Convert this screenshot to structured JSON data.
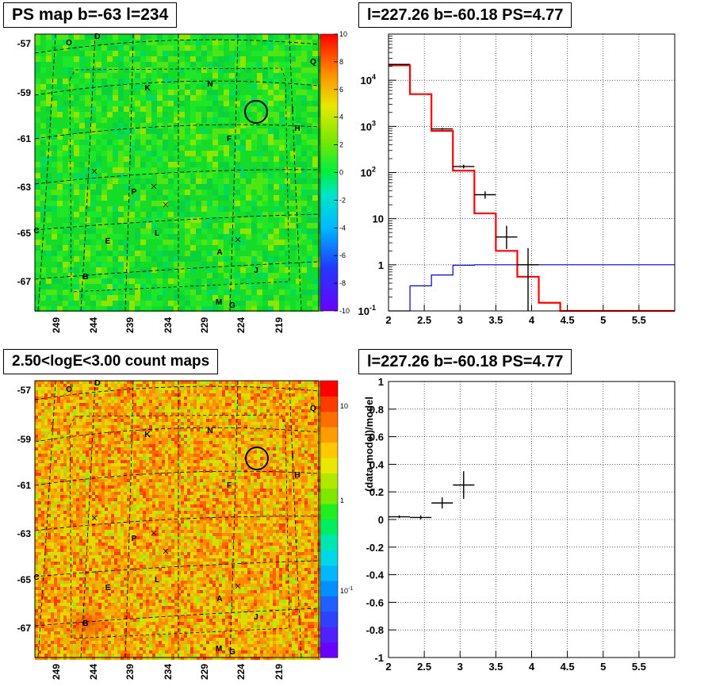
{
  "titles": {
    "map_top": "PS map b=-63 l=234",
    "spectrum_top": "l=227.26 b=-60.18 PS=4.77",
    "map_bottom": "2.50<logE<3.00 count maps",
    "residual_bottom": "l=227.26 b=-60.18 PS=4.77"
  },
  "map_axes": {
    "y_ticks": [
      "-57",
      "-59",
      "-61",
      "-63",
      "-65",
      "-67"
    ],
    "x_ticks": [
      "249",
      "244",
      "239",
      "234",
      "229",
      "224",
      "219"
    ],
    "source_labels": [
      "O",
      "D",
      "Q",
      "K",
      "N",
      "I",
      "H",
      "F",
      "P",
      "C",
      "E",
      "L",
      "A",
      "J",
      "B",
      "M",
      "G"
    ]
  },
  "ps_colorbar": {
    "ticks": [
      "10",
      "8",
      "6",
      "4",
      "2",
      "0",
      "-2",
      "-4",
      "-6",
      "-8",
      "-10"
    ]
  },
  "count_colorbar": {
    "ticks": [
      "10",
      "1",
      "10",
      "-1"
    ]
  },
  "chart_data": [
    {
      "type": "heatmap",
      "title": "PS map b=-63 l=234",
      "xlabel": "",
      "ylabel": "",
      "x_ticks": [
        249,
        244,
        239,
        234,
        229,
        224,
        219
      ],
      "y_ticks": [
        -57,
        -59,
        -61,
        -63,
        -65,
        -67
      ],
      "zlim": [
        -10,
        10
      ],
      "highlight_circle": {
        "l": 225.5,
        "b": -59.8
      },
      "colormap": "rainbow (purple=-10, green=0, red=10)"
    },
    {
      "type": "line",
      "title": "l=227.26 b=-60.18 PS=4.77",
      "x_range": [
        2,
        6
      ],
      "y_scale": "log",
      "y_range": [
        0.1,
        100000
      ],
      "x_ticks": [
        "2",
        "2.5",
        "3",
        "3.5",
        "4",
        "4.5",
        "5",
        "5.5"
      ],
      "y_ticks": [
        "10^{-1}",
        "1",
        "10",
        "10^{2}",
        "10^{3}",
        "10^{4}"
      ],
      "grid": true,
      "series": [
        {
          "color": "#ff0000",
          "style": "step",
          "bins": [
            [
              2.0,
              2.3,
              21000
            ],
            [
              2.3,
              2.6,
              5000
            ],
            [
              2.6,
              2.9,
              800
            ],
            [
              2.9,
              3.2,
              110
            ],
            [
              3.2,
              3.5,
              13
            ],
            [
              3.5,
              3.8,
              2
            ],
            [
              3.8,
              4.1,
              0.55
            ],
            [
              4.1,
              4.4,
              0.15
            ],
            [
              4.4,
              6.0,
              0.1
            ]
          ]
        },
        {
          "color": "#0000cc",
          "style": "step",
          "bins": [
            [
              2.0,
              2.3,
              0.1
            ],
            [
              2.3,
              2.6,
              0.35
            ],
            [
              2.6,
              2.9,
              0.6
            ],
            [
              2.9,
              3.2,
              0.98
            ],
            [
              3.2,
              6.0,
              1.0
            ]
          ]
        },
        {
          "color": "#000000",
          "style": "errorbars",
          "points": [
            {
              "x": 2.15,
              "xerr": 0.15,
              "y": 22000,
              "ylo": 21500,
              "yhi": 22500
            },
            {
              "x": 2.75,
              "xerr": 0.15,
              "y": 880,
              "ylo": 840,
              "yhi": 920
            },
            {
              "x": 3.05,
              "xerr": 0.15,
              "y": 135,
              "ylo": 122,
              "yhi": 148
            },
            {
              "x": 3.35,
              "xerr": 0.15,
              "y": 33,
              "ylo": 27,
              "yhi": 39
            },
            {
              "x": 3.65,
              "xerr": 0.15,
              "y": 4,
              "ylo": 2.2,
              "yhi": 7
            },
            {
              "x": 3.95,
              "xerr": 0.15,
              "y": 1,
              "ylo": 0.1,
              "yhi": 2.3
            }
          ]
        }
      ]
    },
    {
      "type": "heatmap",
      "title": "2.50<logE<3.00 count maps",
      "x_ticks": [
        249,
        244,
        239,
        234,
        229,
        224,
        219
      ],
      "y_ticks": [
        -57,
        -59,
        -61,
        -63,
        -65,
        -67
      ],
      "z_scale": "log",
      "zlim": [
        0.02,
        30
      ],
      "highlight_circle": {
        "l": 225.5,
        "b": -59.8
      },
      "colormap": "rainbow (purple=low, red=high)"
    },
    {
      "type": "scatter",
      "title": "l=227.26 b=-60.18 PS=4.77",
      "ylabel": "(data-model)/model",
      "x_range": [
        2,
        6
      ],
      "y_range": [
        -1,
        1
      ],
      "x_ticks": [
        "2",
        "2.5",
        "3",
        "3.5",
        "4",
        "4.5",
        "5",
        "5.5"
      ],
      "y_ticks": [
        "1",
        "0.8",
        "0.6",
        "0.4",
        "0.2",
        "0",
        "-0.2",
        "-0.4",
        "-0.6",
        "-0.8",
        "-1"
      ],
      "grid": true,
      "points": [
        {
          "x": 2.15,
          "xerr": 0.15,
          "y": 0.02,
          "yerr": 0.01
        },
        {
          "x": 2.45,
          "xerr": 0.15,
          "y": 0.015,
          "yerr": 0.015
        },
        {
          "x": 2.75,
          "xerr": 0.15,
          "y": 0.12,
          "yerr": 0.04
        },
        {
          "x": 3.05,
          "xerr": 0.15,
          "y": 0.25,
          "yerr": 0.1
        }
      ]
    }
  ]
}
